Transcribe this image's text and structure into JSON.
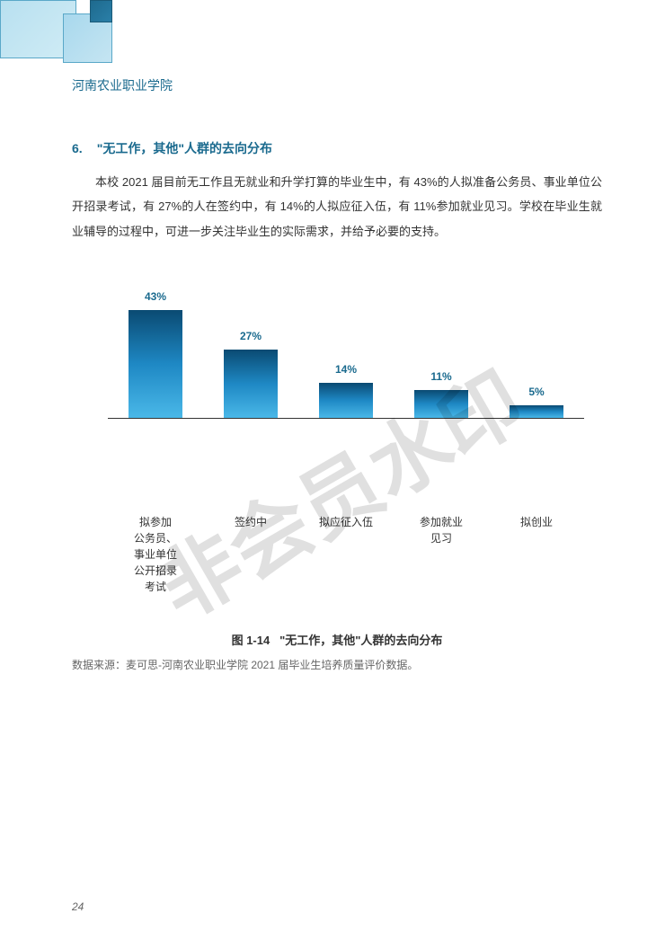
{
  "header": {
    "institution": "河南农业职业学院"
  },
  "section": {
    "number": "6.",
    "title": "\"无工作，其他\"人群的去向分布",
    "paragraph": "本校 2021 届目前无工作且无就业和升学打算的毕业生中，有 43%的人拟准备公务员、事业单位公开招录考试，有 27%的人在签约中，有 14%的人拟应征入伍，有 11%参加就业见习。学校在毕业生就业辅导的过程中，可进一步关注毕业生的实际需求，并给予必要的支持。"
  },
  "chart": {
    "type": "bar",
    "max_value": 50,
    "bar_gradient_top": "#0a4a72",
    "bar_gradient_mid": "#1e88c4",
    "bar_gradient_bottom": "#4ab8e8",
    "label_color": "#1a6a8e",
    "axis_color": "#333333",
    "bars": [
      {
        "value": 43,
        "label": "43%",
        "category": "拟参加\n公务员、\n事业单位\n公开招录\n考试"
      },
      {
        "value": 27,
        "label": "27%",
        "category": "签约中"
      },
      {
        "value": 14,
        "label": "14%",
        "category": "拟应征入伍"
      },
      {
        "value": 11,
        "label": "11%",
        "category": "参加就业\n见习"
      },
      {
        "value": 5,
        "label": "5%",
        "category": "拟创业"
      }
    ]
  },
  "figure_caption": {
    "prefix": "图 1-14",
    "title": "\"无工作，其他\"人群的去向分布"
  },
  "data_source": "数据来源：麦可思-河南农业职业学院 2021 届毕业生培养质量评价数据。",
  "watermark": "非会员水印",
  "page_number": "24",
  "colors": {
    "primary": "#1a6a8e",
    "text": "#333333",
    "muted": "#666666"
  }
}
